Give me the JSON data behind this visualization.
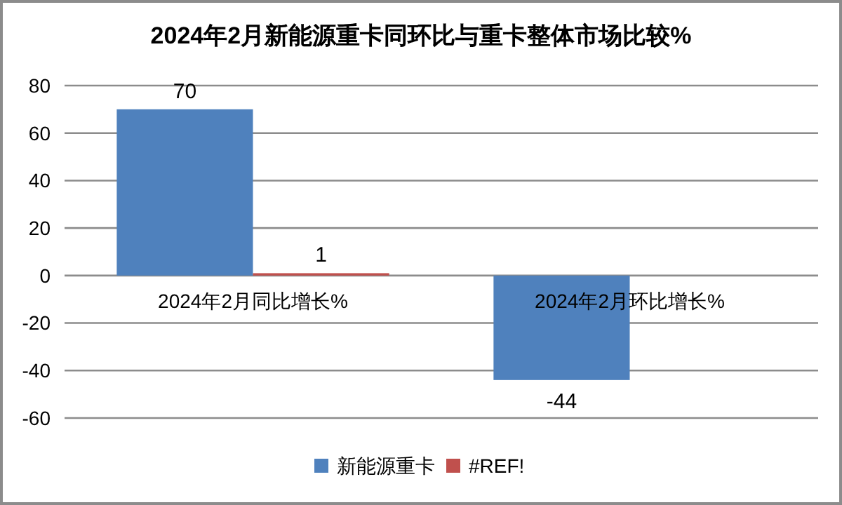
{
  "chart_data": {
    "type": "bar",
    "title": "2024年2月新能源重卡同环比与重卡整体市场比较%",
    "categories": [
      "2024年2月同比增长%",
      "2024年2月环比增长%"
    ],
    "series": [
      {
        "name": "新能源重卡",
        "color": "#4f81bd",
        "values": [
          70,
          -44
        ]
      },
      {
        "name": "#REF!",
        "color": "#c0504d",
        "values": [
          1,
          null
        ]
      }
    ],
    "ylim": [
      -60,
      80
    ],
    "yticks": [
      -60,
      -40,
      -20,
      0,
      20,
      40,
      60,
      80
    ],
    "grid": "y",
    "legend": "bottom",
    "data_labels": true
  }
}
